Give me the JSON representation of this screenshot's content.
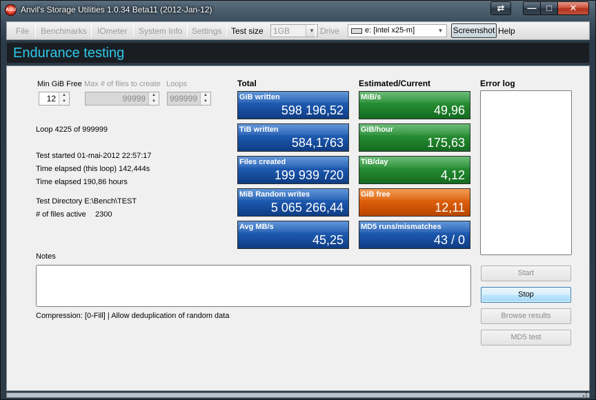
{
  "window": {
    "title": "Anvil's Storage Utilities 1.0.34 Beta11 (2012-Jan-12)",
    "app_icon_text": "ASU",
    "caption_buttons": {
      "swap": "⇄",
      "minimize": "—",
      "maximize": "□",
      "close": "✕"
    }
  },
  "menubar": {
    "items": [
      {
        "label": "File",
        "enabled": false
      },
      {
        "label": "Benchmarks",
        "enabled": false
      },
      {
        "label": "IOmeter",
        "enabled": false
      },
      {
        "label": "System Info",
        "enabled": false
      },
      {
        "label": "Settings",
        "enabled": false
      }
    ],
    "test_size_label": "Test size",
    "test_size_value": "1GB",
    "drive_label": "Drive",
    "drive_value": "e: [intel x25-m]",
    "screenshot_label": "Screenshot",
    "help_label": "Help"
  },
  "header": {
    "title": "Endurance testing"
  },
  "params": {
    "min_free_label": "Min GiB Free",
    "min_free_value": "12",
    "max_files_label": "Max # of files to create",
    "max_files_value": "99999",
    "loops_label": "Loops",
    "loops_value": "999999"
  },
  "status": {
    "loop": "Loop 4225 of 999999",
    "started": "Test started 01-mai-2012 22:57:17",
    "elapsed_loop": "Time elapsed (this loop) 142,444s",
    "elapsed_total": "Time elapsed 190,86 hours",
    "directory": "Test Directory E:\\Bench\\TEST",
    "files_active_label": "# of files active",
    "files_active_value": "2300"
  },
  "total": {
    "heading": "Total",
    "tiles": [
      {
        "label": "GiB written",
        "value": "598 196,52",
        "color": "#1a54a8"
      },
      {
        "label": "TiB written",
        "value": "584,1763",
        "color": "#1a54a8"
      },
      {
        "label": "Files created",
        "value": "199 939 720",
        "color": "#1a54a8"
      },
      {
        "label": "MiB Random writes",
        "value": "5 065 266,44",
        "color": "#1a54a8"
      },
      {
        "label": "Avg MB/s",
        "value": "45,25",
        "color": "#1a54a8"
      }
    ]
  },
  "estimated": {
    "heading": "Estimated/Current",
    "tiles": [
      {
        "label": "MiB/s",
        "value": "49,96",
        "color": "#22862e"
      },
      {
        "label": "GiB/hour",
        "value": "175,63",
        "color": "#22862e"
      },
      {
        "label": "TiB/day",
        "value": "4,12",
        "color": "#22862e"
      },
      {
        "label": "GiB free",
        "value": "12,11",
        "color": "#d85a08"
      },
      {
        "label": "MD5 runs/mismatches",
        "value": "43 / 0",
        "color": "#1a54a8"
      }
    ]
  },
  "error_log": {
    "heading": "Error log"
  },
  "notes": {
    "label": "Notes"
  },
  "compression": "Compression: [0-Fill] | Allow deduplication of random data",
  "actions": {
    "start": "Start",
    "stop": "Stop",
    "browse": "Browse results",
    "md5": "MD5 test"
  }
}
